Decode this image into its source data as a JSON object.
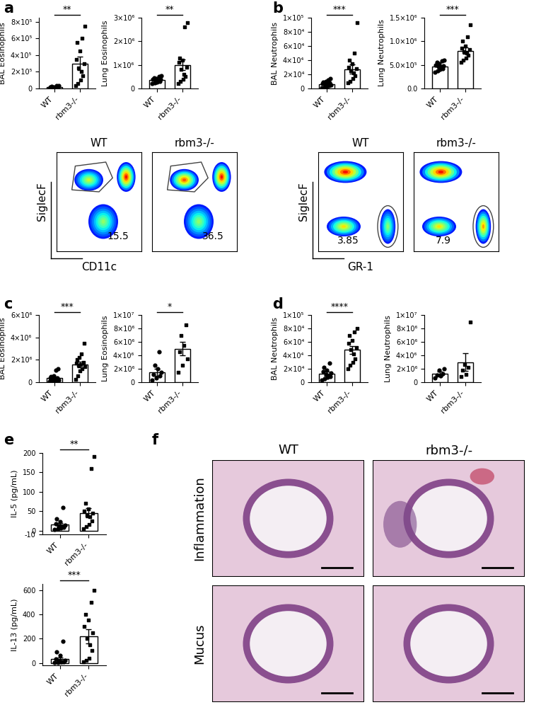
{
  "chart_data": [
    {
      "type": "bar",
      "ylabel": "BAL Eosinophils",
      "categories": [
        "WT",
        "rbm3-/-"
      ],
      "values": [
        13000,
        300000
      ],
      "errors": [
        3500,
        80000
      ],
      "points": [
        [
          2000,
          3000,
          5000,
          8000,
          10000,
          12000,
          15000,
          18000,
          20000,
          25000,
          30000,
          32000
        ],
        [
          30000,
          60000,
          100000,
          150000,
          200000,
          250000,
          300000,
          350000,
          450000,
          550000,
          600000,
          750000
        ]
      ],
      "ylim": [
        0,
        850000
      ],
      "yticks": [
        0,
        {
          "value": 200000,
          "label": "2×10⁵"
        },
        {
          "value": 400000,
          "label": "4×10⁵"
        },
        {
          "value": 600000,
          "label": "6×10⁵"
        },
        {
          "value": 800000,
          "label": "8×10⁵"
        }
      ],
      "annotation": "**"
    },
    {
      "type": "bar",
      "ylabel": "Lung Eosinophils",
      "categories": [
        "WT",
        "rbm3-/-"
      ],
      "values": [
        350000,
        1000000
      ],
      "errors": [
        40000,
        230000
      ],
      "points": [
        [
          200000,
          250000,
          280000,
          300000,
          320000,
          350000,
          380000,
          400000,
          420000,
          450000,
          500000,
          550000
        ],
        [
          200000,
          300000,
          400000,
          500000,
          600000,
          800000,
          900000,
          1100000,
          1200000,
          1300000,
          2600000,
          2800000
        ]
      ],
      "ylim": [
        0,
        3000000
      ],
      "yticks": [
        0,
        {
          "value": 1000000,
          "label": "1×10⁶"
        },
        {
          "value": 2000000,
          "label": "2×10⁶"
        },
        {
          "value": 3000000,
          "label": "3×10⁶"
        }
      ],
      "annotation": "**"
    },
    {
      "type": "bar",
      "ylabel": "BAL Neutrophils",
      "categories": [
        "WT",
        "rbm3-/-"
      ],
      "values": [
        6000,
        27000
      ],
      "errors": [
        1200,
        6500
      ],
      "points": [
        [
          1000,
          2000,
          3000,
          4000,
          5000,
          5500,
          6000,
          7000,
          8000,
          9000,
          10000,
          12000,
          14000
        ],
        [
          8000,
          10000,
          14000,
          18000,
          22000,
          25000,
          28000,
          30000,
          35000,
          40000,
          50000,
          93000
        ]
      ],
      "ylim": [
        0,
        100000
      ],
      "yticks": [
        0,
        {
          "value": 20000,
          "label": "2×10⁴"
        },
        {
          "value": 40000,
          "label": "4×10⁴"
        },
        {
          "value": 60000,
          "label": "6×10⁴"
        },
        {
          "value": 80000,
          "label": "8×10⁴"
        },
        {
          "value": 100000,
          "label": "1×10⁵"
        }
      ],
      "annotation": "***"
    },
    {
      "type": "bar",
      "ylabel": "Lung Neutrophils",
      "categories": [
        "WT",
        "rbm3-/-"
      ],
      "values": [
        470000,
        800000
      ],
      "errors": [
        25000,
        65000
      ],
      "points": [
        [
          350000,
          380000,
          400000,
          420000,
          450000,
          460000,
          480000,
          500000,
          520000,
          550000,
          580000,
          600000
        ],
        [
          550000,
          600000,
          650000,
          700000,
          750000,
          780000,
          820000,
          850000,
          900000,
          1000000,
          1100000,
          1350000
        ]
      ],
      "ylim": [
        0,
        1500000
      ],
      "yticks": [
        {
          "value": 0,
          "label": "0.0"
        },
        {
          "value": 500000,
          "label": "5.0×10⁵"
        },
        {
          "value": 1000000,
          "label": "1.0×10⁶"
        },
        {
          "value": 1500000,
          "label": "1.5×10⁶"
        }
      ],
      "annotation": "***"
    },
    {
      "type": "bar",
      "ylabel": "BAL Eosinophils",
      "categories": [
        "WT",
        "rbm3-/-"
      ],
      "values": [
        400000,
        1600000
      ],
      "errors": [
        130000,
        250000
      ],
      "points": [
        [
          50000,
          80000,
          100000,
          150000,
          200000,
          250000,
          300000,
          350000,
          400000,
          500000,
          600000,
          1100000,
          1200000
        ],
        [
          250000,
          600000,
          1000000,
          1200000,
          1400000,
          1500000,
          1600000,
          1700000,
          1800000,
          2000000,
          2200000,
          2500000,
          3500000
        ]
      ],
      "ylim": [
        0,
        6000000
      ],
      "yticks": [
        0,
        {
          "value": 2000000,
          "label": "2×10⁶"
        },
        {
          "value": 4000000,
          "label": "4×10⁶"
        },
        {
          "value": 6000000,
          "label": "6×10⁶"
        }
      ],
      "annotation": "***"
    },
    {
      "type": "bar",
      "ylabel": "Lung Eosinophils",
      "categories": [
        "WT",
        "rbm3-/-"
      ],
      "values": [
        1500000,
        5000000
      ],
      "errors": [
        500000,
        1000000
      ],
      "points": [
        [
          300000,
          600000,
          900000,
          1200000,
          1500000,
          2000000,
          2500000,
          4500000
        ],
        [
          1500000,
          2500000,
          3500000,
          4500000,
          5500000,
          7000000,
          8500000
        ]
      ],
      "ylim": [
        0,
        10000000
      ],
      "yticks": [
        0,
        {
          "value": 2000000,
          "label": "2×10⁶"
        },
        {
          "value": 4000000,
          "label": "4×10⁶"
        },
        {
          "value": 6000000,
          "label": "6×10⁶"
        },
        {
          "value": 8000000,
          "label": "8×10⁶"
        },
        {
          "value": 10000000,
          "label": "1×10⁷"
        }
      ],
      "annotation": "*"
    },
    {
      "type": "bar",
      "ylabel": "BAL Neutrophils",
      "categories": [
        "WT",
        "rbm3-/-"
      ],
      "values": [
        13000,
        48000
      ],
      "errors": [
        3000,
        6000
      ],
      "points": [
        [
          3000,
          5000,
          7000,
          8000,
          10000,
          12000,
          14000,
          16000,
          18000,
          22000,
          28000
        ],
        [
          20000,
          25000,
          30000,
          35000,
          42000,
          48000,
          52000,
          58000,
          62000,
          70000,
          75000,
          80000
        ]
      ],
      "ylim": [
        0,
        100000
      ],
      "yticks": [
        0,
        {
          "value": 20000,
          "label": "2×10⁴"
        },
        {
          "value": 40000,
          "label": "4×10⁴"
        },
        {
          "value": 60000,
          "label": "6×10⁴"
        },
        {
          "value": 80000,
          "label": "8×10⁴"
        },
        {
          "value": 100000,
          "label": "1×10⁵"
        }
      ],
      "annotation": "****"
    },
    {
      "type": "bar",
      "ylabel": "Lung Neutrophils",
      "categories": [
        "WT",
        "rbm3-/-"
      ],
      "values": [
        1300000,
        3000000
      ],
      "errors": [
        300000,
        1300000
      ],
      "points": [
        [
          600000,
          900000,
          1100000,
          1300000,
          1800000,
          2000000
        ],
        [
          800000,
          1200000,
          1800000,
          2200000,
          2600000,
          9000000
        ]
      ],
      "ylim": [
        0,
        10000000
      ],
      "yticks": [
        0,
        {
          "value": 2000000,
          "label": "2×10⁶"
        },
        {
          "value": 4000000,
          "label": "4×10⁶"
        },
        {
          "value": 6000000,
          "label": "6×10⁶"
        },
        {
          "value": 8000000,
          "label": "8×10⁶"
        },
        {
          "value": 10000000,
          "label": "1×10⁷"
        }
      ]
    },
    {
      "type": "bar",
      "ylabel": "IL-5 (pg/mL)",
      "categories": [
        "WT",
        "rbm3-/-"
      ],
      "values": [
        15,
        45
      ],
      "errors": [
        5,
        12
      ],
      "points": [
        [
          2,
          4,
          6,
          8,
          10,
          12,
          14,
          18,
          22,
          30,
          60
        ],
        [
          5,
          10,
          15,
          25,
          35,
          40,
          45,
          50,
          55,
          70,
          160,
          190
        ]
      ],
      "ylim": [
        -10,
        200
      ],
      "yticks": [
        -10,
        0,
        50,
        100,
        150,
        200
      ],
      "annotation": "**"
    },
    {
      "type": "bar",
      "ylabel": "IL-13 (pg/mL)",
      "categories": [
        "WT",
        "rbm3-/-"
      ],
      "values": [
        30,
        220
      ],
      "errors": [
        12,
        60
      ],
      "points": [
        [
          2,
          5,
          8,
          10,
          12,
          15,
          20,
          30,
          60,
          90,
          180
        ],
        [
          10,
          20,
          40,
          100,
          150,
          200,
          250,
          300,
          350,
          400,
          500,
          600
        ]
      ],
      "ylim": [
        -20,
        650
      ],
      "yticks": [
        0,
        200,
        400,
        600
      ],
      "annotation": "***"
    }
  ],
  "panel_labels": [
    "a",
    "b",
    "c",
    "d",
    "e",
    "f"
  ],
  "flow": [
    {
      "title": "WT",
      "ylabel": "SiglecF",
      "xlabel": "CD11c",
      "gate_value": 15.5
    },
    {
      "title": "rbm3-/-",
      "gate_value": 36.5
    },
    {
      "title": "WT",
      "ylabel": "SiglecF",
      "xlabel": "GR-1",
      "gate_value": 3.85
    },
    {
      "title": "rbm3-/-",
      "gate_value": 7.9
    }
  ],
  "histology": {
    "columns": [
      "WT",
      "rbm3-/-"
    ],
    "rows": [
      "Inflammation",
      "Mucus"
    ]
  }
}
